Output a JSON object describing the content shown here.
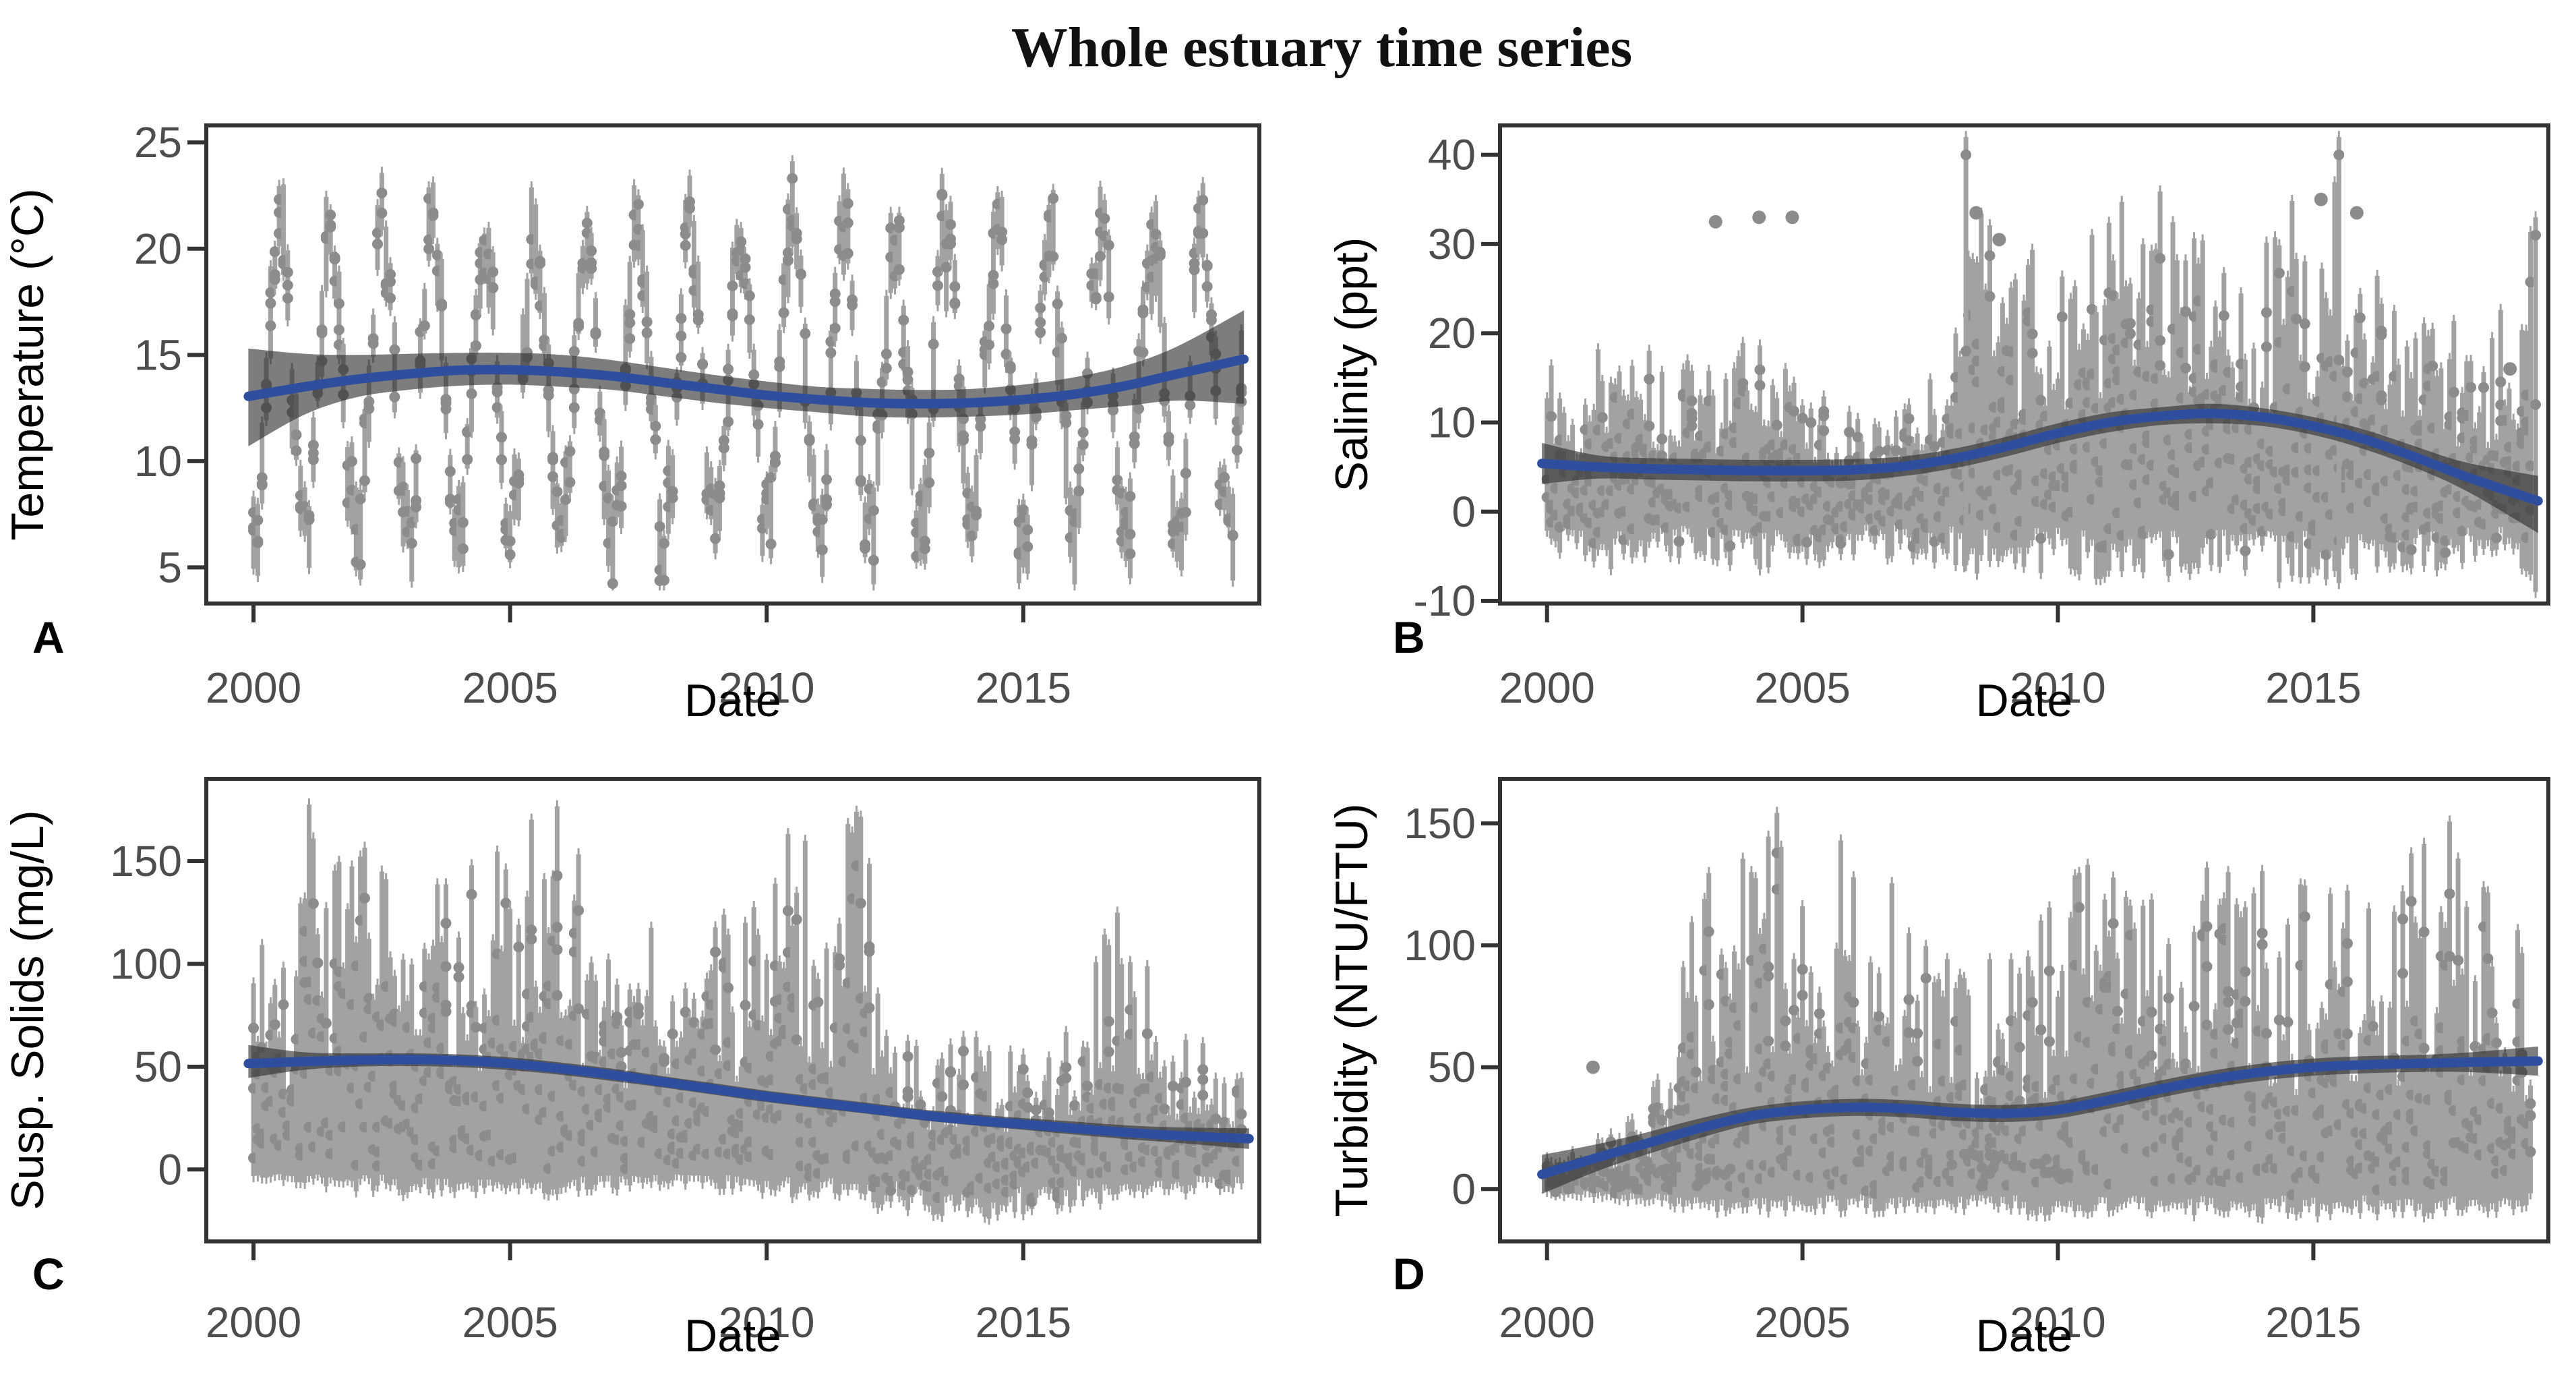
{
  "title": "Whole estuary time series",
  "colors": {
    "background": "#FFFFFF",
    "bar_gray": "#A2A2A2",
    "point_gray": "#8C8C8C",
    "ribbon_gray": "rgba(45,45,45,0.62)",
    "trend_blue": "#2F4F9E",
    "panel_border": "#333333",
    "tick_text": "#4D4D4D",
    "axis_title_text": "#000000",
    "title_text": "#121212"
  },
  "chart_data": [
    {
      "panel": "A",
      "type": "scatter-errorbar-with-smooth",
      "xlabel": "Date",
      "ylabel": "Temperature (°C)",
      "xticks": [
        2000,
        2005,
        2010,
        2015
      ],
      "yticks": [
        5,
        10,
        15,
        20,
        25
      ],
      "xlim": [
        1999.08,
        2019.6
      ],
      "ylim": [
        3.3,
        25.8
      ],
      "trend": {
        "x": [
          1999.9,
          2001,
          2002,
          2003,
          2004,
          2005,
          2006,
          2007,
          2008,
          2009,
          2010,
          2011,
          2012,
          2013,
          2014,
          2015,
          2016,
          2017,
          2018,
          2019.3
        ],
        "y": [
          13.05,
          13.5,
          13.85,
          14.1,
          14.28,
          14.3,
          14.2,
          14.0,
          13.7,
          13.4,
          13.1,
          12.9,
          12.75,
          12.7,
          12.75,
          12.9,
          13.15,
          13.55,
          14.1,
          14.8
        ]
      },
      "ribbon": {
        "lo": [
          10.7,
          12.2,
          13.0,
          13.35,
          13.55,
          13.6,
          13.5,
          13.35,
          13.05,
          12.75,
          12.5,
          12.3,
          12.1,
          12.05,
          12.1,
          12.2,
          12.4,
          12.6,
          12.85,
          12.7
        ],
        "hi": [
          15.3,
          15.05,
          15.0,
          15.05,
          15.1,
          15.1,
          15.0,
          14.75,
          14.4,
          14.05,
          13.75,
          13.5,
          13.4,
          13.35,
          13.4,
          13.6,
          13.95,
          14.5,
          15.4,
          17.1
        ]
      },
      "raw_series": {
        "mode": "seasonal",
        "x_start": 2000.0,
        "x_end": 2019.3,
        "per_year": 12,
        "mean": 13.7,
        "amplitude": 7.1,
        "phase": 0.25,
        "noise": 1.5,
        "halfwidth_min": 0.9,
        "halfwidth_max": 2.4,
        "clamp": [
          4.2,
          24.6
        ],
        "seed": 11
      },
      "outlier_points": [],
      "outlier_bars": []
    },
    {
      "panel": "B",
      "type": "scatter-errorbar-with-smooth",
      "xlabel": "Date",
      "ylabel": "Salinity (ppt)",
      "xticks": [
        2000,
        2005,
        2010,
        2015
      ],
      "yticks": [
        -10,
        0,
        10,
        20,
        30,
        40
      ],
      "xlim": [
        1999.08,
        2019.6
      ],
      "ylim": [
        -10.3,
        43.3
      ],
      "trend": {
        "x": [
          1999.9,
          2001,
          2002,
          2003,
          2004,
          2005,
          2006,
          2007,
          2008,
          2009,
          2010,
          2011,
          2012,
          2013,
          2014,
          2015,
          2016,
          2017,
          2018,
          2019.4
        ],
        "y": [
          5.4,
          5.0,
          4.8,
          4.7,
          4.6,
          4.6,
          4.7,
          5.1,
          6.0,
          7.3,
          8.8,
          10.0,
          10.7,
          11.0,
          10.6,
          9.6,
          8.1,
          6.1,
          3.9,
          1.2
        ]
      },
      "ribbon": {
        "lo": [
          3.1,
          3.7,
          3.6,
          3.5,
          3.4,
          3.4,
          3.5,
          4.0,
          4.9,
          6.2,
          7.7,
          8.9,
          9.7,
          9.9,
          9.6,
          8.6,
          7.0,
          4.9,
          2.3,
          -2.4
        ],
        "hi": [
          7.7,
          6.3,
          6.0,
          5.9,
          5.8,
          5.8,
          5.9,
          6.2,
          7.1,
          8.4,
          9.9,
          11.1,
          11.7,
          12.1,
          11.6,
          10.6,
          9.2,
          7.3,
          5.5,
          4.0
        ]
      },
      "raw_series": {
        "mode": "envelope",
        "x_start": 2000.0,
        "x_end": 2019.3,
        "per_year": 12,
        "env_x": [
          2000,
          2001,
          2002,
          2003,
          2004,
          2005,
          2006,
          2007,
          2007.8,
          2008.3,
          2009,
          2010,
          2011,
          2012,
          2013,
          2014,
          2015,
          2015.6,
          2016,
          2017,
          2018,
          2019,
          2019.4
        ],
        "env_hi": [
          17,
          21,
          19,
          16,
          20,
          15,
          12,
          13,
          18,
          36,
          28,
          31,
          34,
          37,
          30,
          34,
          40,
          36,
          30,
          26,
          22,
          26,
          34
        ],
        "env_lo": [
          -5,
          -7,
          -7,
          -6,
          -7,
          -6,
          -5,
          -6,
          -6,
          -7,
          -7,
          -7,
          -8,
          -8,
          -7,
          -8,
          -8,
          -8,
          -7,
          -7,
          -6,
          -7,
          -8
        ],
        "min_span": 5,
        "clamp": [
          -9.3,
          42.5
        ],
        "seed": 22
      },
      "outlier_points": [
        [
          2003.3,
          32.5
        ],
        [
          2004.15,
          33.0
        ],
        [
          2004.8,
          33.0
        ],
        [
          2008.4,
          33.5
        ],
        [
          2008.85,
          30.5
        ],
        [
          2015.15,
          35.0
        ],
        [
          2015.85,
          33.5
        ],
        [
          2018.85,
          16.0
        ]
      ],
      "outlier_bars": [
        [
          2008.2,
          -6,
          42
        ],
        [
          2015.5,
          -8,
          42
        ],
        [
          2019.35,
          -9,
          33
        ]
      ]
    },
    {
      "panel": "C",
      "type": "scatter-errorbar-with-smooth",
      "xlabel": "Date",
      "ylabel": "Susp. Solids (mg/L)",
      "xticks": [
        2000,
        2005,
        2010,
        2015
      ],
      "yticks": [
        0,
        50,
        100,
        150
      ],
      "xlim": [
        1999.08,
        2019.6
      ],
      "ylim": [
        -35,
        190
      ],
      "trend": {
        "x": [
          1999.9,
          2001,
          2002,
          2003,
          2004,
          2005,
          2006,
          2007,
          2008,
          2009,
          2010,
          2011,
          2012,
          2013,
          2014,
          2015,
          2016,
          2017,
          2018,
          2019.4
        ],
        "y": [
          51.5,
          52.5,
          53.2,
          53.5,
          53.0,
          51.5,
          49.0,
          46.0,
          42.5,
          39.0,
          35.5,
          32.5,
          29.5,
          26.5,
          24.0,
          22.0,
          20.0,
          18.0,
          16.5,
          15.0
        ]
      },
      "ribbon": {
        "lo": [
          44.5,
          48.5,
          50.0,
          50.3,
          49.8,
          48.3,
          46.0,
          43.0,
          39.8,
          36.3,
          32.8,
          29.8,
          27.0,
          24.0,
          21.5,
          19.3,
          17.0,
          14.8,
          13.0,
          10.0
        ],
        "hi": [
          60.5,
          57.0,
          56.5,
          56.5,
          56.0,
          54.5,
          52.0,
          49.0,
          45.3,
          41.8,
          38.3,
          35.3,
          32.3,
          29.3,
          27.0,
          25.0,
          23.3,
          21.5,
          20.5,
          20.0
        ]
      },
      "raw_series": {
        "mode": "envelope",
        "x_start": 2000.0,
        "x_end": 2019.3,
        "per_year": 12,
        "env_x": [
          2000,
          2000.8,
          2001.1,
          2002,
          2002.5,
          2003,
          2004,
          2005,
          2006,
          2006.2,
          2007,
          2008,
          2009,
          2010,
          2010.6,
          2011,
          2011.5,
          2012,
          2012.2,
          2013,
          2014,
          2015,
          2016,
          2016.8,
          2017.2,
          2018,
          2019,
          2019.4
        ],
        "env_hi": [
          130,
          95,
          180,
          150,
          165,
          135,
          148,
          158,
          182,
          160,
          130,
          128,
          118,
          140,
          176,
          150,
          178,
          172,
          70,
          58,
          65,
          58,
          68,
          130,
          112,
          68,
          58,
          40
        ],
        "env_lo": [
          -4,
          -6,
          -8,
          -12,
          -10,
          -14,
          -12,
          -10,
          -14,
          -12,
          -10,
          -8,
          -10,
          -12,
          -14,
          -12,
          -16,
          -20,
          -22,
          -24,
          -26,
          -22,
          -18,
          -16,
          -14,
          -12,
          -10,
          -8
        ],
        "min_span": 25,
        "clamp": [
          -31,
          184
        ],
        "seed": 33
      },
      "outlier_points": [],
      "outlier_bars": []
    },
    {
      "panel": "D",
      "type": "scatter-errorbar-with-smooth",
      "xlabel": "Date",
      "ylabel": "Turbidity (NTU/FTU)",
      "xticks": [
        2000,
        2005,
        2010,
        2015
      ],
      "yticks": [
        0,
        50,
        100,
        150
      ],
      "xlim": [
        1999.08,
        2019.6
      ],
      "ylim": [
        -21.5,
        168.3
      ],
      "trend": {
        "x": [
          1999.9,
          2001,
          2002,
          2003,
          2004,
          2005,
          2006,
          2007,
          2008,
          2009,
          2010,
          2011,
          2012,
          2013,
          2014,
          2015,
          2016,
          2017,
          2018,
          2019.4
        ],
        "y": [
          6.0,
          13.0,
          19.0,
          25.0,
          30.0,
          32.5,
          33.5,
          33.0,
          31.5,
          31.0,
          32.5,
          36.5,
          41.0,
          45.0,
          48.0,
          50.0,
          51.0,
          51.5,
          52.0,
          52.5
        ]
      },
      "ribbon": {
        "lo": [
          -2.0,
          7.5,
          14.5,
          21.0,
          26.5,
          29.0,
          30.0,
          29.5,
          28.0,
          27.5,
          29.0,
          33.0,
          37.5,
          41.5,
          44.5,
          46.5,
          47.5,
          48.0,
          48.0,
          46.5
        ],
        "hi": [
          14.0,
          18.5,
          23.5,
          29.0,
          33.5,
          36.0,
          37.0,
          36.5,
          35.0,
          34.5,
          36.0,
          40.0,
          44.5,
          48.5,
          51.5,
          53.5,
          54.5,
          55.0,
          56.0,
          58.5
        ]
      },
      "raw_series": {
        "mode": "envelope",
        "x_start": 2000.0,
        "x_end": 2019.3,
        "per_year": 12,
        "env_x": [
          2000,
          2000.7,
          2001,
          2002,
          2002.8,
          2003.3,
          2004,
          2004.5,
          2005,
          2005.6,
          2006,
          2006.4,
          2007,
          2008,
          2009,
          2010,
          2010.8,
          2011,
          2012,
          2013,
          2013.6,
          2014,
          2014.5,
          2015,
          2016,
          2017,
          2017.6,
          2018,
          2018.6,
          2019,
          2019.4
        ],
        "env_hi": [
          14,
          18,
          22,
          38,
          120,
          150,
          130,
          155,
          148,
          152,
          128,
          160,
          105,
          92,
          100,
          118,
          158,
          128,
          118,
          138,
          158,
          130,
          118,
          128,
          122,
          138,
          152,
          128,
          158,
          118,
          60
        ],
        "env_lo": [
          -2,
          -3,
          -4,
          -6,
          -8,
          -10,
          -8,
          -10,
          -8,
          -10,
          -8,
          -10,
          -8,
          -8,
          -10,
          -12,
          -10,
          -12,
          -10,
          -12,
          -10,
          -12,
          -10,
          -12,
          -10,
          -12,
          -10,
          -12,
          -10,
          -8,
          -6
        ],
        "min_span": 12,
        "clamp": [
          -19,
          160
        ],
        "seed": 44,
        "low_dots": {
          "ranges": [
            [
              2000.2,
              2003.6
            ],
            [
              2007.8,
              2010.4
            ]
          ],
          "per_year": 7,
          "low": 1,
          "high": 14
        }
      },
      "outlier_points": [
        [
          2000.9,
          50
        ]
      ],
      "outlier_bars": []
    }
  ]
}
